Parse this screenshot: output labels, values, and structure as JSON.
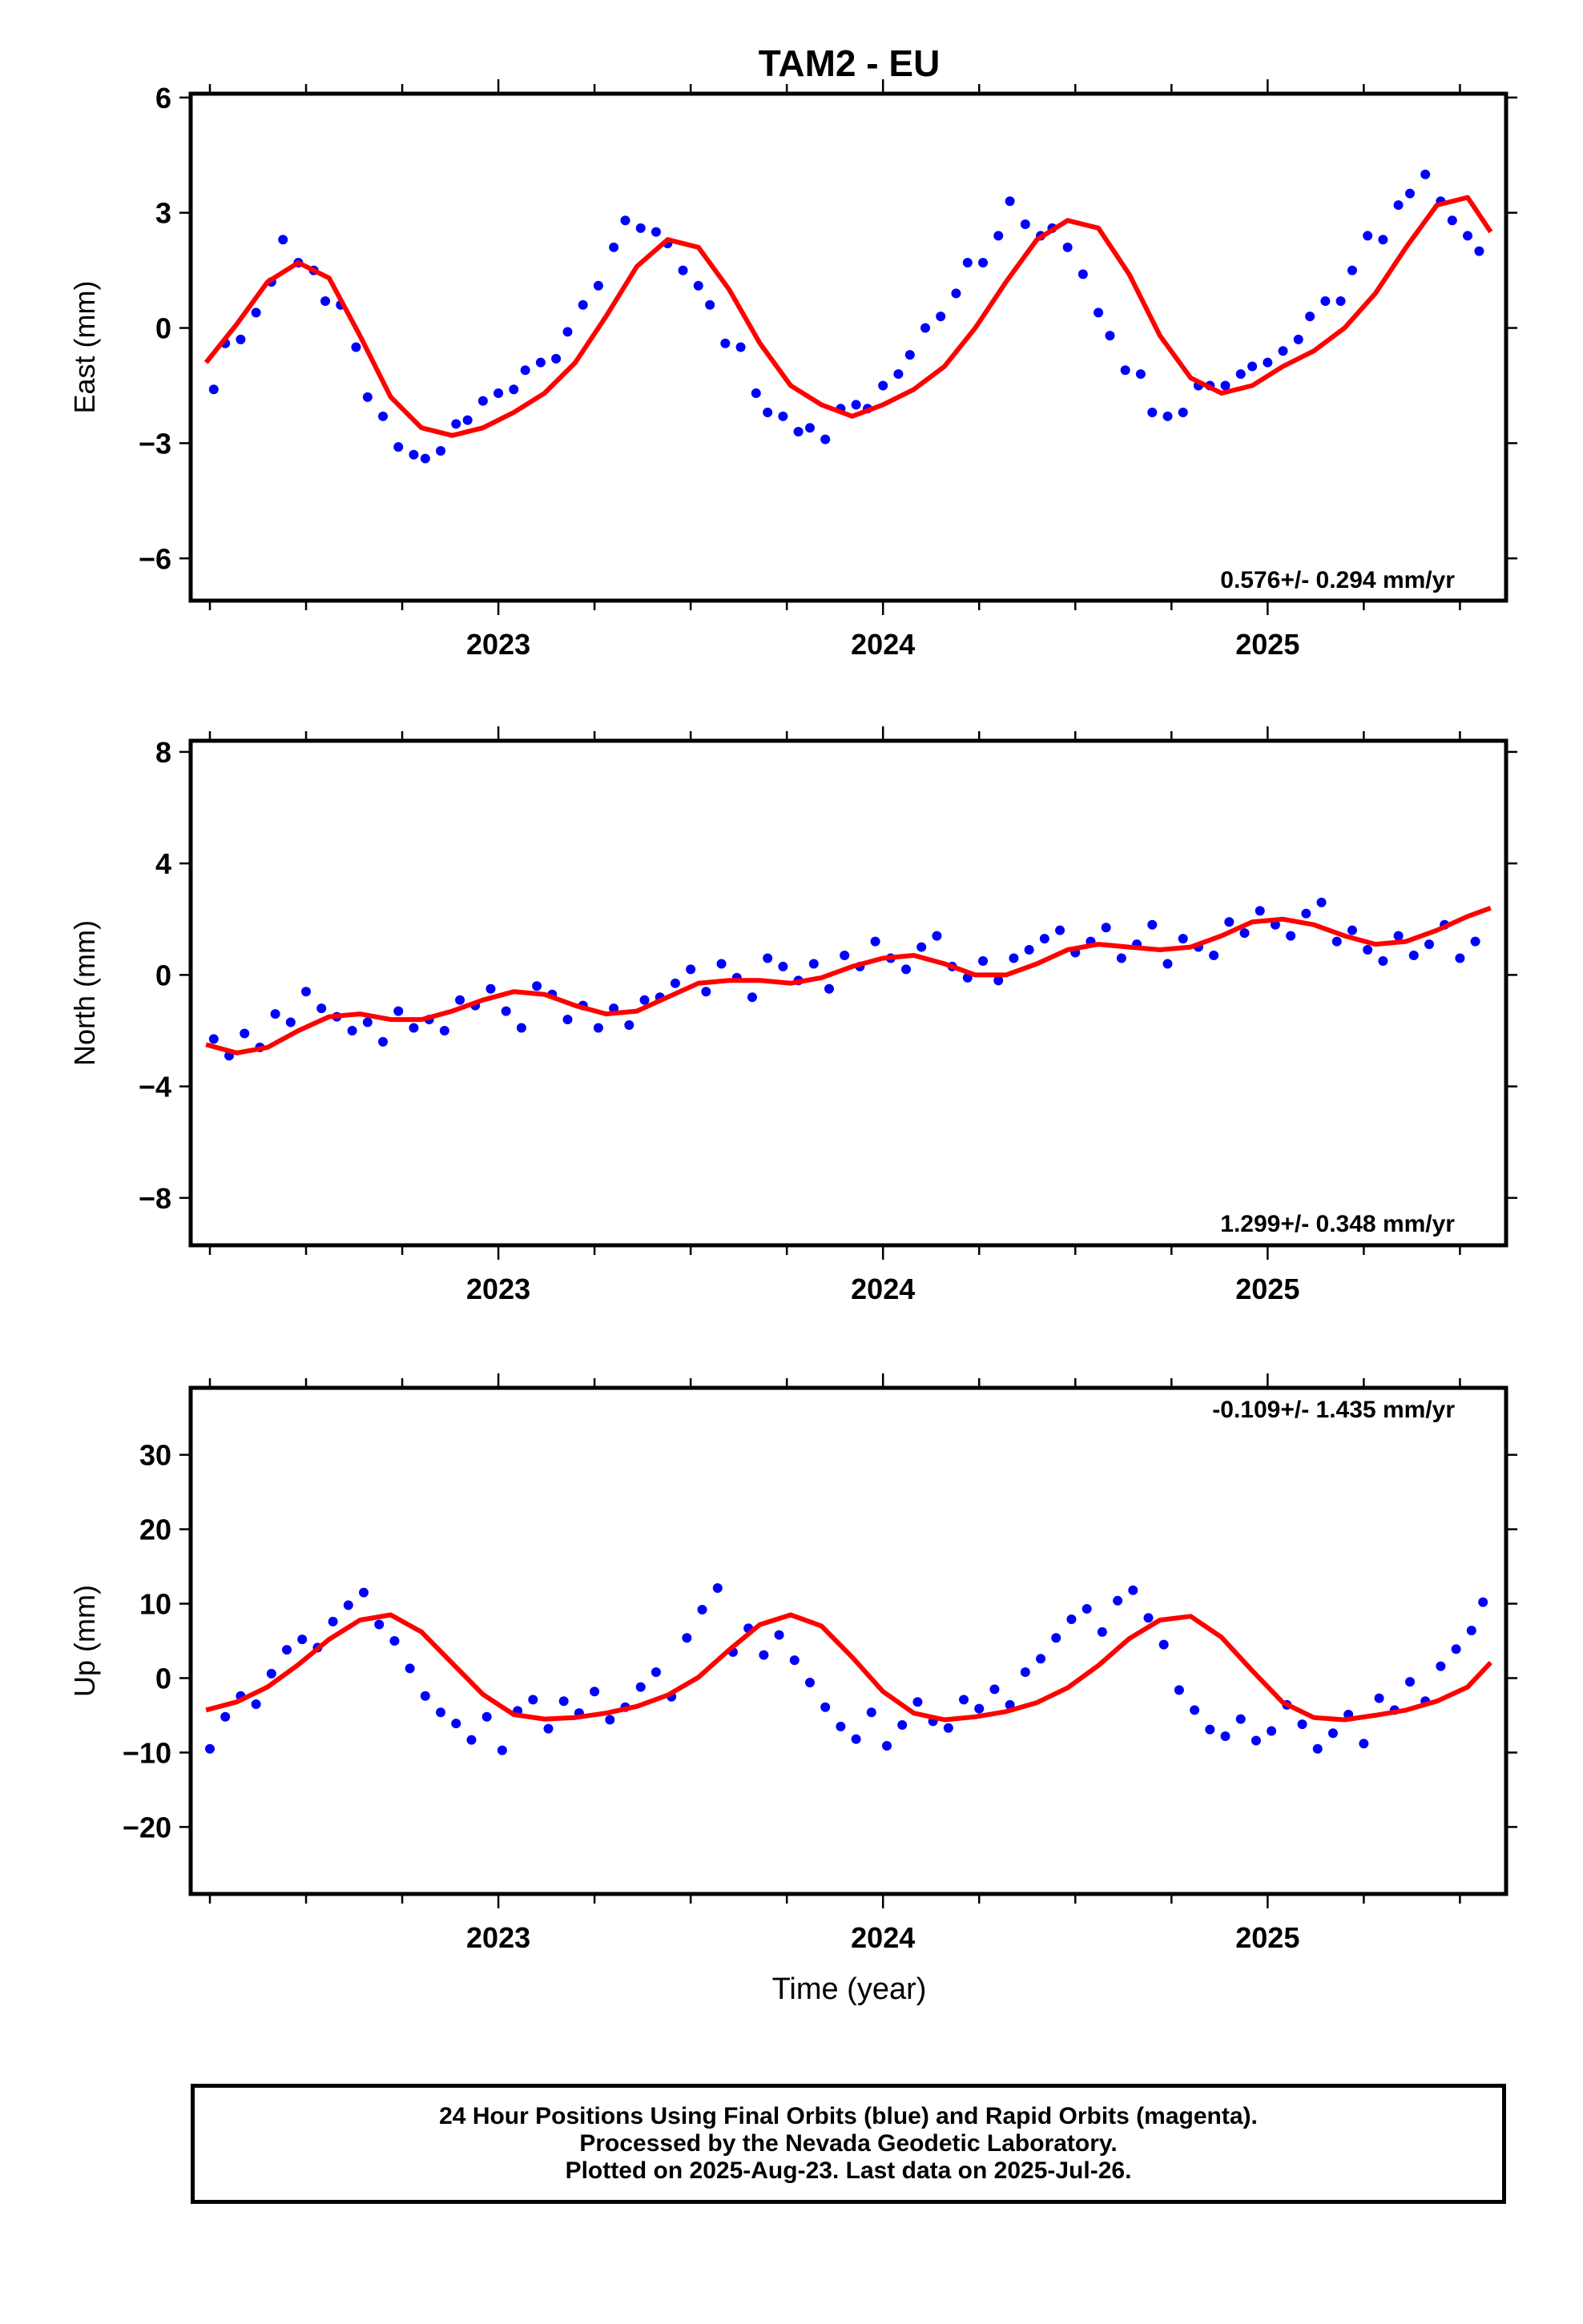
{
  "title": "TAM2 - EU",
  "xlabel": "Time (year)",
  "footer": {
    "line1": "24 Hour Positions Using Final Orbits (blue) and Rapid Orbits (magenta).",
    "line2": "Processed by the Nevada Geodetic Laboratory.",
    "line3": "Plotted on 2025-Aug-23. Last data on 2025-Jul-26."
  },
  "colors": {
    "points": "#0000ff",
    "model": "#ff0000",
    "frame": "#000000"
  },
  "chart_data": [
    {
      "type": "scatter",
      "ylabel": "East (mm)",
      "rate": "0.576+/- 0.294 mm/yr",
      "xlim": [
        2022.2,
        2025.62
      ],
      "ylim": [
        -7.1,
        6.1
      ],
      "yticks": [
        6,
        3,
        0,
        -3,
        -6
      ],
      "ytick_labels": [
        "6",
        "3",
        "0",
        "−3",
        "−6"
      ],
      "xticks": [
        2023,
        2024,
        2025
      ],
      "xtick_labels": [
        "2023",
        "2024",
        "2025"
      ],
      "series": [
        {
          "kind": "points",
          "x": [
            2022.26,
            2022.29,
            2022.33,
            2022.37,
            2022.41,
            2022.44,
            2022.48,
            2022.52,
            2022.55,
            2022.59,
            2022.63,
            2022.66,
            2022.7,
            2022.74,
            2022.78,
            2022.81,
            2022.85,
            2022.89,
            2022.92,
            2022.96,
            2023.0,
            2023.04,
            2023.07,
            2023.11,
            2023.15,
            2023.18,
            2023.22,
            2023.26,
            2023.3,
            2023.33,
            2023.37,
            2023.41,
            2023.44,
            2023.48,
            2023.52,
            2023.55,
            2023.59,
            2023.63,
            2023.67,
            2023.7,
            2023.74,
            2023.78,
            2023.81,
            2023.85,
            2023.89,
            2023.93,
            2023.96,
            2024.0,
            2024.04,
            2024.07,
            2024.11,
            2024.15,
            2024.19,
            2024.22,
            2024.26,
            2024.3,
            2024.33,
            2024.37,
            2024.41,
            2024.44,
            2024.48,
            2024.52,
            2024.56,
            2024.59,
            2024.63,
            2024.67,
            2024.7,
            2024.74,
            2024.78,
            2024.82,
            2024.85,
            2024.89,
            2024.93,
            2024.96,
            2025.0,
            2025.04,
            2025.08,
            2025.11,
            2025.15,
            2025.19,
            2025.22,
            2025.26,
            2025.3,
            2025.34,
            2025.37,
            2025.41,
            2025.45,
            2025.48,
            2025.52,
            2025.55
          ],
          "y": [
            -1.6,
            -0.4,
            -0.3,
            0.4,
            1.2,
            2.3,
            1.7,
            1.5,
            0.7,
            0.6,
            -0.5,
            -1.8,
            -2.3,
            -3.1,
            -3.3,
            -3.4,
            -3.2,
            -2.5,
            -2.4,
            -1.9,
            -1.7,
            -1.6,
            -1.1,
            -0.9,
            -0.8,
            -0.1,
            0.6,
            1.1,
            2.1,
            2.8,
            2.6,
            2.5,
            2.2,
            1.5,
            1.1,
            0.6,
            -0.4,
            -0.5,
            -1.7,
            -2.2,
            -2.3,
            -2.7,
            -2.6,
            -2.9,
            -2.1,
            -2.0,
            -2.1,
            -1.5,
            -1.2,
            -0.7,
            0.0,
            0.3,
            0.9,
            1.7,
            1.7,
            2.4,
            3.3,
            2.7,
            2.4,
            2.6,
            2.1,
            1.4,
            0.4,
            -0.2,
            -1.1,
            -1.2,
            -2.2,
            -2.3,
            -2.2,
            -1.5,
            -1.5,
            -1.5,
            -1.2,
            -1.0,
            -0.9,
            -0.6,
            -0.3,
            0.3,
            0.7,
            0.7,
            1.5,
            2.4,
            2.3,
            3.2,
            3.5,
            4.0,
            3.3,
            2.8,
            2.4,
            2.0
          ]
        },
        {
          "kind": "line",
          "x": [
            2022.24,
            2022.32,
            2022.4,
            2022.48,
            2022.56,
            2022.64,
            2022.72,
            2022.8,
            2022.88,
            2022.96,
            2023.04,
            2023.12,
            2023.2,
            2023.28,
            2023.36,
            2023.44,
            2023.52,
            2023.6,
            2023.68,
            2023.76,
            2023.84,
            2023.92,
            2024.0,
            2024.08,
            2024.16,
            2024.24,
            2024.32,
            2024.4,
            2024.48,
            2024.56,
            2024.64,
            2024.72,
            2024.8,
            2024.88,
            2024.96,
            2025.04,
            2025.12,
            2025.2,
            2025.28,
            2025.36,
            2025.44,
            2025.52,
            2025.58
          ],
          "y": [
            -0.9,
            0.1,
            1.2,
            1.7,
            1.3,
            -0.2,
            -1.8,
            -2.6,
            -2.8,
            -2.6,
            -2.2,
            -1.7,
            -0.9,
            0.3,
            1.6,
            2.3,
            2.1,
            1.0,
            -0.4,
            -1.5,
            -2.0,
            -2.3,
            -2.0,
            -1.6,
            -1.0,
            0.0,
            1.2,
            2.3,
            2.8,
            2.6,
            1.4,
            -0.2,
            -1.3,
            -1.7,
            -1.5,
            -1.0,
            -0.6,
            0.0,
            0.9,
            2.1,
            3.2,
            3.4,
            2.5
          ]
        }
      ]
    },
    {
      "type": "scatter",
      "ylabel": "North (mm)",
      "rate": "1.299+/- 0.348 mm/yr",
      "xlim": [
        2022.2,
        2025.62
      ],
      "ylim": [
        -9.7,
        8.4
      ],
      "yticks": [
        8,
        4,
        0,
        -4,
        -8
      ],
      "ytick_labels": [
        "8",
        "4",
        "0",
        "−4",
        "−8"
      ],
      "xticks": [
        2023,
        2024,
        2025
      ],
      "xtick_labels": [
        "2023",
        "2024",
        "2025"
      ],
      "series": [
        {
          "kind": "points",
          "x": [
            2022.26,
            2022.3,
            2022.34,
            2022.38,
            2022.42,
            2022.46,
            2022.5,
            2022.54,
            2022.58,
            2022.62,
            2022.66,
            2022.7,
            2022.74,
            2022.78,
            2022.82,
            2022.86,
            2022.9,
            2022.94,
            2022.98,
            2023.02,
            2023.06,
            2023.1,
            2023.14,
            2023.18,
            2023.22,
            2023.26,
            2023.3,
            2023.34,
            2023.38,
            2023.42,
            2023.46,
            2023.5,
            2023.54,
            2023.58,
            2023.62,
            2023.66,
            2023.7,
            2023.74,
            2023.78,
            2023.82,
            2023.86,
            2023.9,
            2023.94,
            2023.98,
            2024.02,
            2024.06,
            2024.1,
            2024.14,
            2024.18,
            2024.22,
            2024.26,
            2024.3,
            2024.34,
            2024.38,
            2024.42,
            2024.46,
            2024.5,
            2024.54,
            2024.58,
            2024.62,
            2024.66,
            2024.7,
            2024.74,
            2024.78,
            2024.82,
            2024.86,
            2024.9,
            2024.94,
            2024.98,
            2025.02,
            2025.06,
            2025.1,
            2025.14,
            2025.18,
            2025.22,
            2025.26,
            2025.3,
            2025.34,
            2025.38,
            2025.42,
            2025.46,
            2025.5,
            2025.54
          ],
          "y": [
            -2.3,
            -2.9,
            -2.1,
            -2.6,
            -1.4,
            -1.7,
            -0.6,
            -1.2,
            -1.5,
            -2.0,
            -1.7,
            -2.4,
            -1.3,
            -1.9,
            -1.6,
            -2.0,
            -0.9,
            -1.1,
            -0.5,
            -1.3,
            -1.9,
            -0.4,
            -0.7,
            -1.6,
            -1.1,
            -1.9,
            -1.2,
            -1.8,
            -0.9,
            -0.8,
            -0.3,
            0.2,
            -0.6,
            0.4,
            -0.1,
            -0.8,
            0.6,
            0.3,
            -0.2,
            0.4,
            -0.5,
            0.7,
            0.3,
            1.2,
            0.6,
            0.2,
            1.0,
            1.4,
            0.3,
            -0.1,
            0.5,
            -0.2,
            0.6,
            0.9,
            1.3,
            1.6,
            0.8,
            1.2,
            1.7,
            0.6,
            1.1,
            1.8,
            0.4,
            1.3,
            1.0,
            0.7,
            1.9,
            1.5,
            2.3,
            1.8,
            1.4,
            2.2,
            2.6,
            1.2,
            1.6,
            0.9,
            0.5,
            1.4,
            0.7,
            1.1,
            1.8,
            0.6,
            1.2
          ]
        },
        {
          "kind": "line",
          "x": [
            2022.24,
            2022.32,
            2022.4,
            2022.48,
            2022.56,
            2022.64,
            2022.72,
            2022.8,
            2022.88,
            2022.96,
            2023.04,
            2023.12,
            2023.2,
            2023.28,
            2023.36,
            2023.44,
            2023.52,
            2023.6,
            2023.68,
            2023.76,
            2023.84,
            2023.92,
            2024.0,
            2024.08,
            2024.16,
            2024.24,
            2024.32,
            2024.4,
            2024.48,
            2024.56,
            2024.64,
            2024.72,
            2024.8,
            2024.88,
            2024.96,
            2025.04,
            2025.12,
            2025.2,
            2025.28,
            2025.36,
            2025.44,
            2025.52,
            2025.58
          ],
          "y": [
            -2.5,
            -2.8,
            -2.6,
            -2.0,
            -1.5,
            -1.4,
            -1.6,
            -1.6,
            -1.3,
            -0.9,
            -0.6,
            -0.7,
            -1.1,
            -1.4,
            -1.3,
            -0.8,
            -0.3,
            -0.2,
            -0.2,
            -0.3,
            -0.1,
            0.3,
            0.6,
            0.7,
            0.4,
            0.0,
            0.0,
            0.4,
            0.9,
            1.1,
            1.0,
            0.9,
            1.0,
            1.4,
            1.9,
            2.0,
            1.8,
            1.4,
            1.1,
            1.2,
            1.6,
            2.1,
            2.4
          ]
        }
      ]
    },
    {
      "type": "scatter",
      "ylabel": "Up (mm)",
      "rate": "-0.109+/- 1.435 mm/yr",
      "xlim": [
        2022.2,
        2025.62
      ],
      "ylim": [
        -29,
        39
      ],
      "yticks": [
        30,
        20,
        10,
        0,
        -10,
        -20
      ],
      "ytick_labels": [
        "30",
        "20",
        "10",
        "0",
        "−10",
        "−20"
      ],
      "xticks": [
        2023,
        2024,
        2025
      ],
      "xtick_labels": [
        "2023",
        "2024",
        "2025"
      ],
      "series": [
        {
          "kind": "points",
          "x": [
            2022.25,
            2022.29,
            2022.33,
            2022.37,
            2022.41,
            2022.45,
            2022.49,
            2022.53,
            2022.57,
            2022.61,
            2022.65,
            2022.69,
            2022.73,
            2022.77,
            2022.81,
            2022.85,
            2022.89,
            2022.93,
            2022.97,
            2023.01,
            2023.05,
            2023.09,
            2023.13,
            2023.17,
            2023.21,
            2023.25,
            2023.29,
            2023.33,
            2023.37,
            2023.41,
            2023.45,
            2023.49,
            2023.53,
            2023.57,
            2023.61,
            2023.65,
            2023.69,
            2023.73,
            2023.77,
            2023.81,
            2023.85,
            2023.89,
            2023.93,
            2023.97,
            2024.01,
            2024.05,
            2024.09,
            2024.13,
            2024.17,
            2024.21,
            2024.25,
            2024.29,
            2024.33,
            2024.37,
            2024.41,
            2024.45,
            2024.49,
            2024.53,
            2024.57,
            2024.61,
            2024.65,
            2024.69,
            2024.73,
            2024.77,
            2024.81,
            2024.85,
            2024.89,
            2024.93,
            2024.97,
            2025.01,
            2025.05,
            2025.09,
            2025.13,
            2025.17,
            2025.21,
            2025.25,
            2025.29,
            2025.33,
            2025.37,
            2025.41,
            2025.45,
            2025.49,
            2025.53,
            2025.56
          ],
          "y": [
            -9.5,
            -5.2,
            -2.4,
            -3.5,
            0.6,
            3.8,
            5.2,
            4.1,
            7.6,
            9.8,
            11.5,
            7.2,
            5.0,
            1.3,
            -2.4,
            -4.6,
            -6.1,
            -8.3,
            -5.2,
            -9.7,
            -4.4,
            -2.9,
            -6.8,
            -3.1,
            -4.7,
            -1.8,
            -5.6,
            -3.9,
            -1.2,
            0.8,
            -2.5,
            5.4,
            9.2,
            12.1,
            3.5,
            6.7,
            3.1,
            5.8,
            2.4,
            -0.6,
            -3.9,
            -6.5,
            -8.2,
            -4.6,
            -9.1,
            -6.3,
            -3.2,
            -5.8,
            -6.7,
            -2.9,
            -4.1,
            -1.5,
            -3.6,
            0.8,
            2.6,
            5.4,
            7.9,
            9.3,
            6.2,
            10.4,
            11.8,
            8.1,
            4.5,
            -1.6,
            -4.3,
            -6.9,
            -7.8,
            -5.5,
            -8.4,
            -7.1,
            -3.6,
            -6.2,
            -9.5,
            -7.4,
            -4.9,
            -8.8,
            -2.7,
            -4.3,
            -0.5,
            -3.1,
            1.6,
            3.9,
            6.4,
            10.2
          ]
        },
        {
          "kind": "line",
          "x": [
            2022.24,
            2022.32,
            2022.4,
            2022.48,
            2022.56,
            2022.64,
            2022.72,
            2022.8,
            2022.88,
            2022.96,
            2023.04,
            2023.12,
            2023.2,
            2023.28,
            2023.36,
            2023.44,
            2023.52,
            2023.6,
            2023.68,
            2023.76,
            2023.84,
            2023.92,
            2024.0,
            2024.08,
            2024.16,
            2024.24,
            2024.32,
            2024.4,
            2024.48,
            2024.56,
            2024.64,
            2024.72,
            2024.8,
            2024.88,
            2024.96,
            2025.04,
            2025.12,
            2025.2,
            2025.28,
            2025.36,
            2025.44,
            2025.52,
            2025.58
          ],
          "y": [
            -4.3,
            -3.2,
            -1.2,
            1.8,
            5.2,
            7.8,
            8.5,
            6.2,
            2.0,
            -2.2,
            -4.9,
            -5.5,
            -5.3,
            -4.7,
            -3.8,
            -2.3,
            0.1,
            3.8,
            7.2,
            8.5,
            7.0,
            2.8,
            -1.8,
            -4.7,
            -5.6,
            -5.2,
            -4.5,
            -3.3,
            -1.3,
            1.7,
            5.3,
            7.8,
            8.3,
            5.5,
            1.0,
            -3.3,
            -5.3,
            -5.6,
            -5.0,
            -4.3,
            -3.1,
            -1.2,
            2.1
          ]
        }
      ]
    }
  ]
}
